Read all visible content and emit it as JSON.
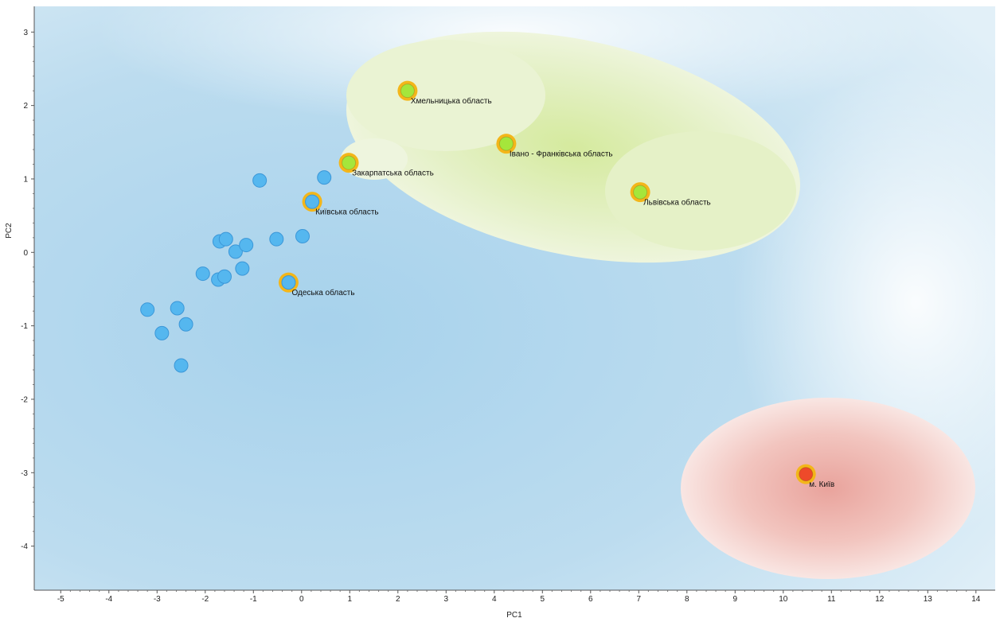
{
  "chart_data": {
    "type": "scatter",
    "xlabel": "PC1",
    "ylabel": "PC2",
    "xlim": [
      -5.55,
      14.4
    ],
    "ylim": [
      -4.6,
      3.35
    ],
    "xticks": [
      -5,
      -4,
      -3,
      -2,
      -1,
      0,
      1,
      2,
      3,
      4,
      5,
      6,
      7,
      8,
      9,
      10,
      11,
      12,
      13,
      14
    ],
    "yticks": [
      -4,
      -3,
      -2,
      -1,
      0,
      1,
      2,
      3
    ],
    "grid": false,
    "legend": "none",
    "colors": {
      "background": "#a9d3ec",
      "cluster_blue": "#55b7ef",
      "cluster_blue_edge": "#3b97d8",
      "cluster_green": "#a5e63b",
      "cluster_red": "#ee4a2a",
      "highlight_ring": "#f3b61a",
      "green_region": "#e4f1c2",
      "red_region": "#f2c0ba"
    },
    "points": [
      {
        "x": -3.2,
        "y": -0.78,
        "cluster": "blue",
        "highlighted": false,
        "label": ""
      },
      {
        "x": -2.9,
        "y": -1.1,
        "cluster": "blue",
        "highlighted": false,
        "label": ""
      },
      {
        "x": -2.58,
        "y": -0.76,
        "cluster": "blue",
        "highlighted": false,
        "label": ""
      },
      {
        "x": -2.4,
        "y": -0.98,
        "cluster": "blue",
        "highlighted": false,
        "label": ""
      },
      {
        "x": -2.5,
        "y": -1.54,
        "cluster": "blue",
        "highlighted": false,
        "label": ""
      },
      {
        "x": -2.05,
        "y": -0.29,
        "cluster": "blue",
        "highlighted": false,
        "label": ""
      },
      {
        "x": -1.73,
        "y": -0.37,
        "cluster": "blue",
        "highlighted": false,
        "label": ""
      },
      {
        "x": -1.6,
        "y": -0.33,
        "cluster": "blue",
        "highlighted": false,
        "label": ""
      },
      {
        "x": -1.7,
        "y": 0.15,
        "cluster": "blue",
        "highlighted": false,
        "label": ""
      },
      {
        "x": -1.57,
        "y": 0.18,
        "cluster": "blue",
        "highlighted": false,
        "label": ""
      },
      {
        "x": -1.37,
        "y": 0.01,
        "cluster": "blue",
        "highlighted": false,
        "label": ""
      },
      {
        "x": -1.15,
        "y": 0.1,
        "cluster": "blue",
        "highlighted": false,
        "label": ""
      },
      {
        "x": -1.23,
        "y": -0.22,
        "cluster": "blue",
        "highlighted": false,
        "label": ""
      },
      {
        "x": -0.87,
        "y": 0.98,
        "cluster": "blue",
        "highlighted": false,
        "label": ""
      },
      {
        "x": -0.52,
        "y": 0.18,
        "cluster": "blue",
        "highlighted": false,
        "label": ""
      },
      {
        "x": 0.02,
        "y": 0.22,
        "cluster": "blue",
        "highlighted": false,
        "label": ""
      },
      {
        "x": 0.47,
        "y": 1.02,
        "cluster": "blue",
        "highlighted": false,
        "label": ""
      },
      {
        "x": -0.27,
        "y": -0.41,
        "cluster": "blue",
        "highlighted": true,
        "label": "Одеська область"
      },
      {
        "x": 0.22,
        "y": 0.69,
        "cluster": "blue",
        "highlighted": true,
        "label": "Київська область"
      },
      {
        "x": 0.98,
        "y": 1.22,
        "cluster": "green",
        "highlighted": true,
        "label": "Закарпатська область"
      },
      {
        "x": 2.2,
        "y": 2.2,
        "cluster": "green",
        "highlighted": true,
        "label": "Хмельницька область"
      },
      {
        "x": 4.25,
        "y": 1.48,
        "cluster": "green",
        "highlighted": true,
        "label": "Івано - Франківська область"
      },
      {
        "x": 7.03,
        "y": 0.82,
        "cluster": "green",
        "highlighted": true,
        "label": "Львівська область"
      },
      {
        "x": 10.47,
        "y": -3.02,
        "cluster": "red",
        "highlighted": true,
        "label": "м. Київ"
      }
    ]
  }
}
